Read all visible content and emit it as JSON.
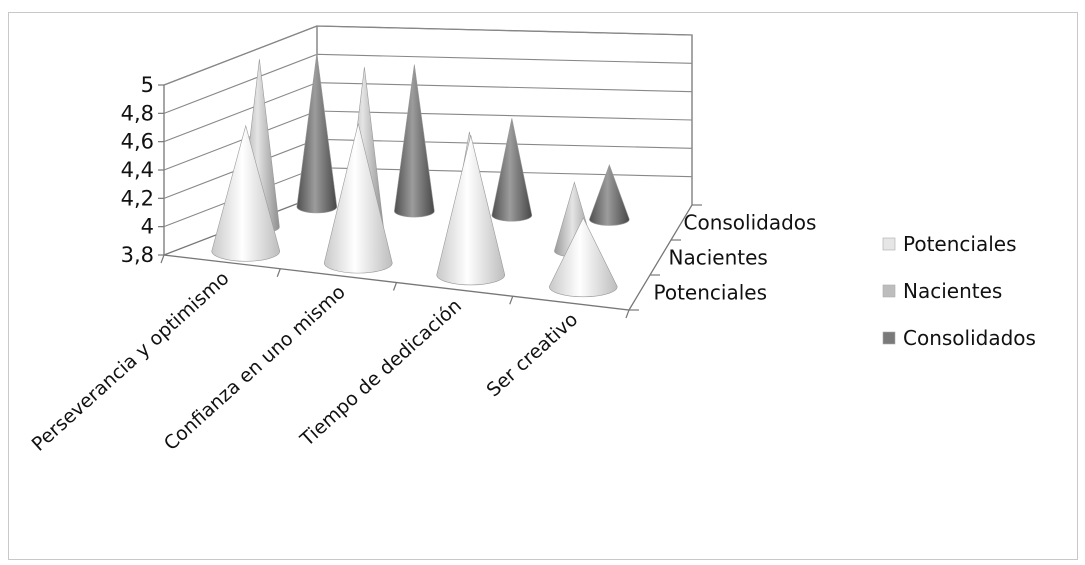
{
  "chart_data": {
    "type": "bar",
    "style": "3d-cone",
    "categories": [
      "Perseverancia y optimismo",
      "Confianza en uno mismo",
      "Tiempo de dedicación",
      "Ser creativo"
    ],
    "depth_categories": [
      "Potenciales",
      "Nacientes",
      "Consolidados"
    ],
    "series": [
      {
        "name": "Potenciales",
        "values": [
          4.6,
          4.7,
          4.7,
          4.2
        ],
        "color": "#e6e6e6"
      },
      {
        "name": "Nacientes",
        "values": [
          4.9,
          4.9,
          4.5,
          4.2
        ],
        "color": "#bdbdbd"
      },
      {
        "name": "Consolidados",
        "values": [
          4.8,
          4.75,
          4.4,
          4.1
        ],
        "color": "#7a7a7a"
      }
    ],
    "y_ticks": [
      "3,8",
      "4",
      "4,2",
      "4,4",
      "4,6",
      "4,8",
      "5"
    ],
    "ylim": [
      3.8,
      5.0
    ],
    "grid": true,
    "legend": {
      "position": "right",
      "entries": [
        "Potenciales",
        "Nacientes",
        "Consolidados"
      ]
    }
  }
}
